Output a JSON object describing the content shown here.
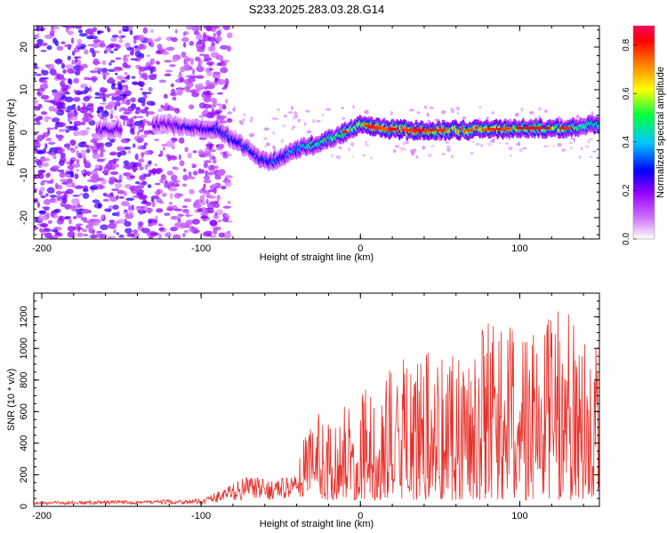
{
  "title": "S233.2025.283.03.28.G14",
  "chart_data": [
    {
      "type": "heatmap",
      "xlabel": "Height of straight line (km)",
      "ylabel": "Frequency (Hz)",
      "xlim": [
        -205,
        150
      ],
      "ylim": [
        -25,
        25
      ],
      "xticks": [
        -200,
        -100,
        0,
        100
      ],
      "yticks": [
        -20,
        -10,
        0,
        10,
        20
      ],
      "ridge": [
        {
          "x": -160,
          "f": 0.5,
          "amp": 0.25
        },
        {
          "x": -125,
          "f": 2,
          "amp": 0.25
        },
        {
          "x": -100,
          "f": 1,
          "amp": 0.3
        },
        {
          "x": -90,
          "f": 1,
          "amp": 0.35
        },
        {
          "x": -80,
          "f": -2,
          "amp": 0.35
        },
        {
          "x": -70,
          "f": -4,
          "amp": 0.35
        },
        {
          "x": -60,
          "f": -7,
          "amp": 0.35
        },
        {
          "x": -50,
          "f": -6,
          "amp": 0.35
        },
        {
          "x": -40,
          "f": -4,
          "amp": 0.45
        },
        {
          "x": -30,
          "f": -3,
          "amp": 0.5
        },
        {
          "x": -15,
          "f": -1,
          "amp": 0.55
        },
        {
          "x": 0,
          "f": 2,
          "amp": 0.65
        },
        {
          "x": 10,
          "f": 1,
          "amp": 0.85
        },
        {
          "x": 30,
          "f": 0.5,
          "amp": 0.8
        },
        {
          "x": 50,
          "f": 0.5,
          "amp": 0.75
        },
        {
          "x": 70,
          "f": 0.5,
          "amp": 0.8
        },
        {
          "x": 100,
          "f": 1,
          "amp": 0.65
        },
        {
          "x": 130,
          "f": 1,
          "amp": 0.6
        },
        {
          "x": 150,
          "f": 2,
          "amp": 0.5
        }
      ],
      "colorbar": {
        "label": "Normalized spectral amplitude",
        "range": [
          0,
          0.88
        ],
        "ticks": [
          0.0,
          0.2,
          0.4,
          0.6,
          0.8
        ],
        "colors": [
          "#ffffff",
          "#b000ff",
          "#0000ff",
          "#00c8ff",
          "#00ff40",
          "#ffff00",
          "#ff8000",
          "#ff0000"
        ]
      }
    },
    {
      "type": "line",
      "xlabel": "Height of straight line (km)",
      "ylabel": "SNR (10 * v/v)",
      "xlim": [
        -205,
        150
      ],
      "ylim": [
        0,
        1350
      ],
      "xticks": [
        -200,
        -100,
        0,
        100
      ],
      "yticks": [
        0,
        200,
        400,
        600,
        800,
        1000,
        1200
      ],
      "color": "#e8302a",
      "envelope": [
        {
          "x": -205,
          "low": 10,
          "high": 30
        },
        {
          "x": -100,
          "low": 15,
          "high": 45
        },
        {
          "x": -85,
          "low": 30,
          "high": 120
        },
        {
          "x": -70,
          "low": 40,
          "high": 200
        },
        {
          "x": -60,
          "low": 40,
          "high": 170
        },
        {
          "x": -50,
          "low": 40,
          "high": 180
        },
        {
          "x": -40,
          "low": 60,
          "high": 220
        },
        {
          "x": -32,
          "low": 60,
          "high": 600
        },
        {
          "x": -20,
          "low": 40,
          "high": 520
        },
        {
          "x": -10,
          "low": 40,
          "high": 650
        },
        {
          "x": 0,
          "low": 40,
          "high": 700
        },
        {
          "x": 20,
          "low": 40,
          "high": 850
        },
        {
          "x": 45,
          "low": 40,
          "high": 1000
        },
        {
          "x": 75,
          "low": 40,
          "high": 1120
        },
        {
          "x": 100,
          "low": 40,
          "high": 1150
        },
        {
          "x": 125,
          "low": 40,
          "high": 1200
        },
        {
          "x": 150,
          "low": 40,
          "high": 1050
        }
      ]
    }
  ]
}
